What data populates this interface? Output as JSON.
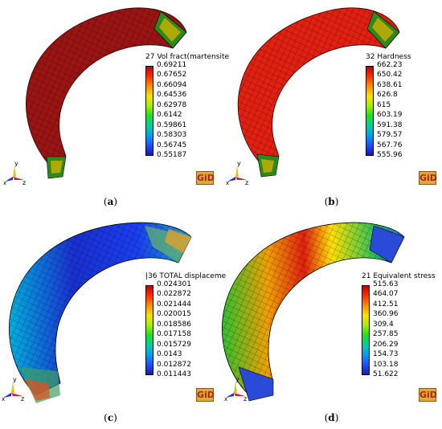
{
  "panels": [
    {
      "legend_title": "27 Vol fract(martensite",
      "ticks": [
        "0.69211",
        "0.67652",
        "0.66094",
        "0.64536",
        "0.62978",
        "0.6142",
        "0.59861",
        "0.58303",
        "0.56745",
        "0.55187"
      ],
      "caption_letter": "a",
      "body_color": "#9b1414",
      "logo": "GiD"
    },
    {
      "legend_title": "32 Hardness",
      "ticks": [
        "662.23",
        "650.42",
        "638.61",
        "626.8",
        "615",
        "603.19",
        "591.38",
        "579.57",
        "567.76",
        "555.96"
      ],
      "caption_letter": "b",
      "body_color": "#e02010",
      "logo": "GiD"
    },
    {
      "legend_title": "|36 TOTAL displaceme",
      "ticks": [
        "0.024301",
        "0.022872",
        "0.021444",
        "0.020015",
        "0.018586",
        "0.017158",
        "0.015729",
        "0.0143",
        "0.012872",
        "0.011443"
      ],
      "caption_letter": "c",
      "body_color": "#1a2fd0",
      "logo": "GiD"
    },
    {
      "legend_title": "21 Equivalent stress",
      "ticks": [
        "515.63",
        "464.07",
        "412.51",
        "360.96",
        "309.4",
        "257.85",
        "206.29",
        "154.73",
        "103.18",
        "51.622"
      ],
      "caption_letter": "d",
      "body_color": "#f0a000",
      "logo": "GiD"
    }
  ],
  "axis_labels": {
    "x": "x",
    "y": "y",
    "z": "z"
  },
  "colormap": [
    "#c00000",
    "#ff3000",
    "#ff9000",
    "#ffe000",
    "#a0f000",
    "#20e020",
    "#00d0a0",
    "#00a0f0",
    "#2050ff",
    "#1818b0"
  ]
}
